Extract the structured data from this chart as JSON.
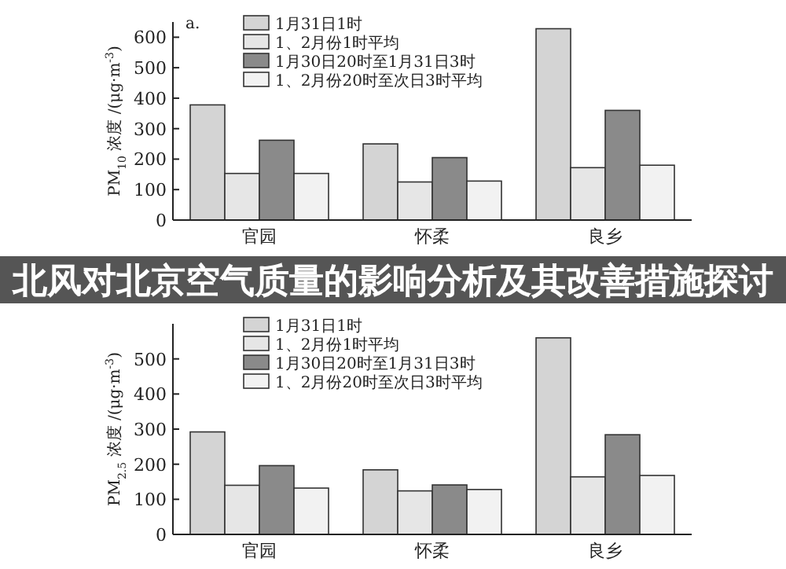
{
  "chart_data": [
    {
      "type": "bar",
      "annotations": [
        "a."
      ],
      "ylabel": "PM$_{10}$ 浓度 /(μg·m$^{-3}$)",
      "categories": [
        "官园",
        "怀柔",
        "良乡"
      ],
      "ylim": [
        0,
        650
      ],
      "yticks": [
        0,
        100,
        200,
        300,
        400,
        500,
        600
      ],
      "legend": "top",
      "series": [
        {
          "name": "1月31日1时",
          "color": "#d4d4d4",
          "values": [
            378,
            250,
            628
          ]
        },
        {
          "name": "1、2月份1时平均",
          "color": "#e6e6e6",
          "values": [
            153,
            125,
            172
          ]
        },
        {
          "name": "1月30日20时至1月31日3时",
          "color": "#8a8a8a",
          "values": [
            262,
            205,
            360
          ]
        },
        {
          "name": "1、2月份20时至次日3时平均",
          "color": "#f2f2f2",
          "values": [
            153,
            128,
            180
          ]
        }
      ]
    },
    {
      "type": "other",
      "title": "北风对北京空气质量的影响分析及其改善措施探讨"
    },
    {
      "type": "bar",
      "ylabel": "PM$_{2.5}$ 浓度 /(μg·m$^{-3}$)",
      "categories": [
        "官园",
        "怀柔",
        "良乡"
      ],
      "ylim": [
        0,
        600
      ],
      "yticks": [
        0,
        100,
        200,
        300,
        400,
        500
      ],
      "legend": "top",
      "series": [
        {
          "name": "1月31日1时",
          "color": "#d4d4d4",
          "values": [
            292,
            184,
            560
          ]
        },
        {
          "name": "1、2月份1时平均",
          "color": "#e6e6e6",
          "values": [
            140,
            124,
            164
          ]
        },
        {
          "name": "1月30日20时至1月31日3时",
          "color": "#8a8a8a",
          "values": [
            196,
            141,
            284
          ]
        },
        {
          "name": "1、2月份20时至次日3时平均",
          "color": "#f2f2f2",
          "values": [
            132,
            128,
            168
          ]
        }
      ]
    }
  ]
}
